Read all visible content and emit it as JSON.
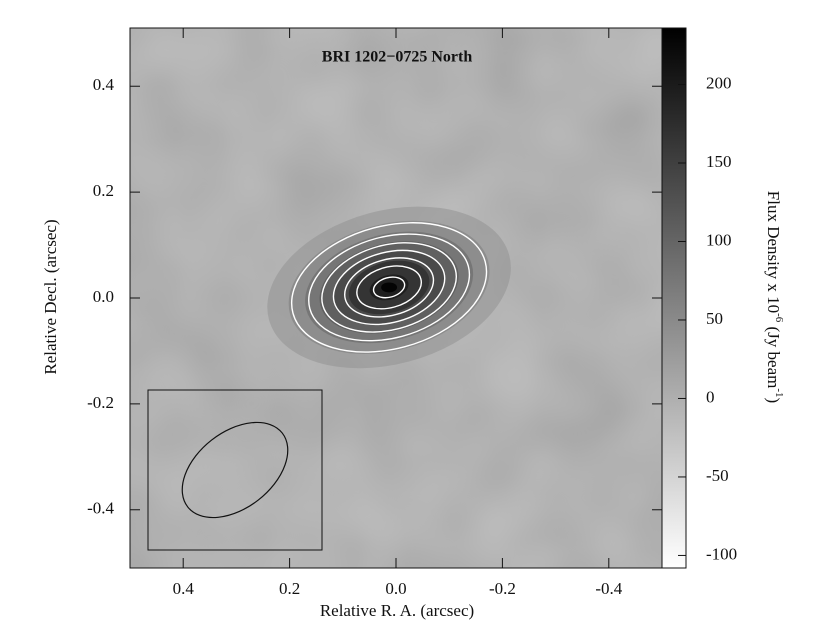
{
  "chart_data": {
    "type": "contour",
    "title": "BRI 1202−0725 North",
    "x_label": "Relative R. A. (arcsec)",
    "y_label": "Relative Decl. (arcsec)",
    "colorbar_label": [
      "Flux Density x 10",
      "-6",
      " (Jy beam",
      "-1",
      ")"
    ],
    "xlim": [
      0.5,
      -0.5
    ],
    "xticks": [
      0.4,
      0.2,
      {
        "value": 0,
        "label": "0.0"
      },
      -0.2,
      -0.4
    ],
    "ylim": [
      -0.51,
      0.51
    ],
    "yticks": [
      -0.4,
      -0.2,
      {
        "value": 0,
        "label": "0.0"
      },
      0.2,
      0.4
    ],
    "zlim": [
      -108,
      236
    ],
    "zticks": [
      -100,
      -50,
      0,
      50,
      100,
      150,
      200
    ],
    "source": {
      "x": 0.013,
      "y": 0.02,
      "peak": 230,
      "sigma_major": 0.1,
      "sigma_minor": 0.062,
      "angle": 15
    },
    "contour_levels": [
      40,
      70,
      100,
      130,
      160,
      190,
      220
    ],
    "contour_color": "#ffffff"
  }
}
